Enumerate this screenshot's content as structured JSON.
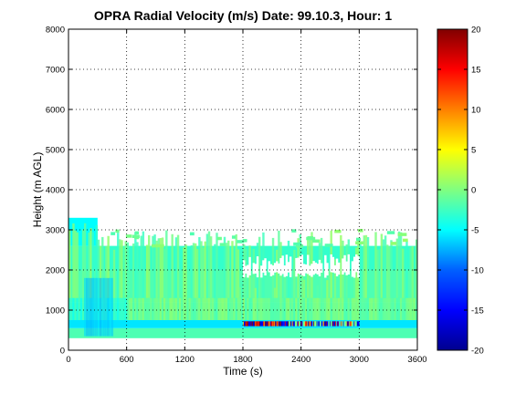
{
  "chart_data": {
    "type": "heatmap",
    "title": "OPRA Radial Velocity (m/s)  Date: 99.10.3, Hour: 1",
    "xlabel": "Time (s)",
    "ylabel": "Height (m AGL)",
    "xlim": [
      0,
      3600
    ],
    "ylim": [
      0,
      8000
    ],
    "x_ticks": [
      "0",
      "600",
      "1200",
      "1800",
      "2400",
      "3000",
      "3600"
    ],
    "y_ticks": [
      "0",
      "1000",
      "2000",
      "3000",
      "4000",
      "5000",
      "6000",
      "7000",
      "8000"
    ],
    "grid": true,
    "colormap": "jet",
    "colorbar": {
      "range": [
        -20,
        20
      ],
      "ticks": [
        "20",
        "15",
        "10",
        "5",
        "0",
        "-5",
        "-10",
        "-15",
        "-20"
      ],
      "colors": [
        "#00008f",
        "#0000ff",
        "#0080ff",
        "#00ffff",
        "#80ff80",
        "#ffff00",
        "#ff8000",
        "#ff0000",
        "#800000"
      ]
    },
    "layers": [
      {
        "height_range": [
          300,
          550
        ],
        "time_range": [
          0,
          3600
        ],
        "velocity": -2
      },
      {
        "height_range": [
          550,
          750
        ],
        "time_range": [
          0,
          3600
        ],
        "velocity": -6,
        "note": "mixed strong values 1800-3000"
      },
      {
        "height_range": [
          750,
          1200
        ],
        "time_range": [
          0,
          3600
        ],
        "velocity": -3
      },
      {
        "height_range": [
          1200,
          2000
        ],
        "time_range": [
          0,
          3600
        ],
        "velocity": -2
      },
      {
        "height_range": [
          2000,
          2600
        ],
        "time_range": [
          0,
          3600
        ],
        "velocity": -3
      },
      {
        "height_range": [
          2600,
          3300
        ],
        "time_range": [
          0,
          300
        ],
        "velocity": -5
      }
    ]
  },
  "text": {
    "title": "OPRA Radial Velocity (m/s)  Date: 99.10.3, Hour: 1",
    "xlabel": "Time (s)",
    "ylabel": "Height (m AGL)"
  }
}
